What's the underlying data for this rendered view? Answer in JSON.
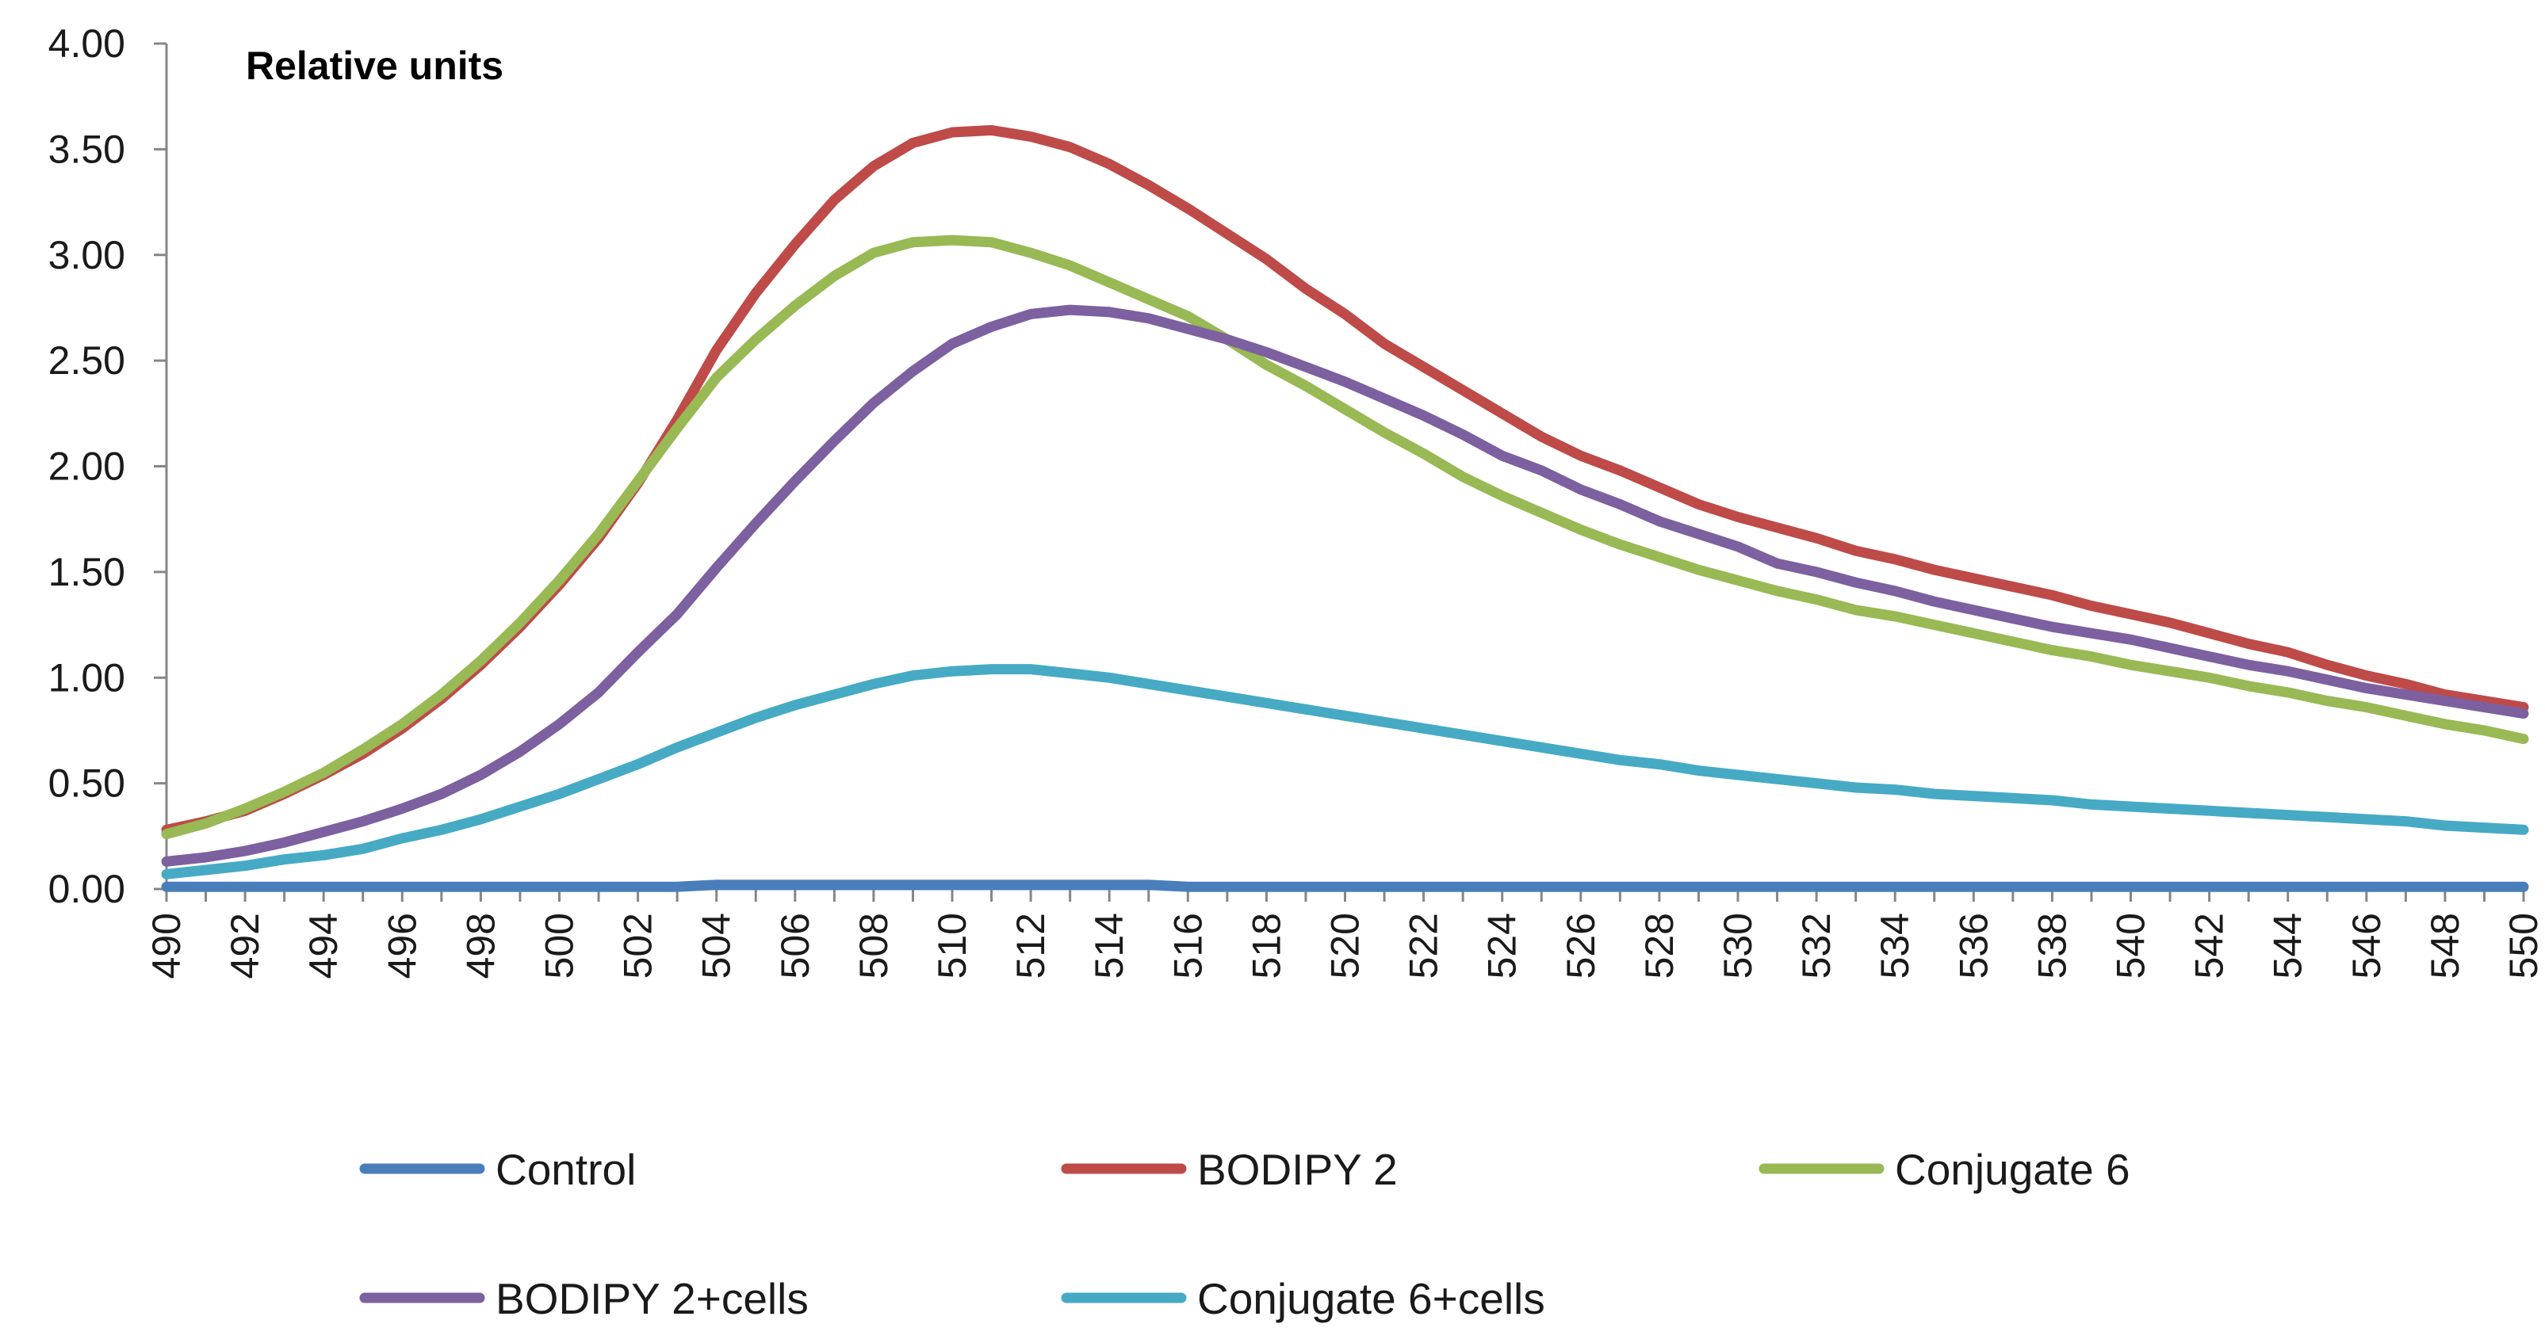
{
  "chart_data": {
    "type": "line",
    "title": "Relative units",
    "xlabel": "",
    "ylabel": "",
    "x": [
      490,
      491,
      492,
      493,
      494,
      495,
      496,
      497,
      498,
      499,
      500,
      501,
      502,
      503,
      504,
      505,
      506,
      507,
      508,
      509,
      510,
      511,
      512,
      513,
      514,
      515,
      516,
      517,
      518,
      519,
      520,
      521,
      522,
      523,
      524,
      525,
      526,
      527,
      528,
      529,
      530,
      531,
      532,
      533,
      534,
      535,
      536,
      537,
      538,
      539,
      540,
      541,
      542,
      543,
      544,
      545,
      546,
      547,
      548,
      549,
      550
    ],
    "xticks": [
      "490",
      "492",
      "494",
      "496",
      "498",
      "500",
      "502",
      "504",
      "506",
      "508",
      "510",
      "512",
      "514",
      "516",
      "518",
      "520",
      "522",
      "524",
      "526",
      "528",
      "530",
      "532",
      "534",
      "536",
      "538",
      "540",
      "542",
      "544",
      "546",
      "548",
      "550"
    ],
    "yticks": [
      "0.00",
      "0.50",
      "1.00",
      "1.50",
      "2.00",
      "2.50",
      "3.00",
      "3.50",
      "4.00"
    ],
    "ylim": [
      0,
      4
    ],
    "xlim": [
      490,
      550
    ],
    "grid": false,
    "legend_position": "bottom",
    "series": [
      {
        "name": "Control",
        "color": "#4a7ebb",
        "values": [
          0.01,
          0.01,
          0.01,
          0.01,
          0.01,
          0.01,
          0.01,
          0.01,
          0.01,
          0.01,
          0.01,
          0.01,
          0.01,
          0.01,
          0.02,
          0.02,
          0.02,
          0.02,
          0.02,
          0.02,
          0.02,
          0.02,
          0.02,
          0.02,
          0.02,
          0.02,
          0.01,
          0.01,
          0.01,
          0.01,
          0.01,
          0.01,
          0.01,
          0.01,
          0.01,
          0.01,
          0.01,
          0.01,
          0.01,
          0.01,
          0.01,
          0.01,
          0.01,
          0.01,
          0.01,
          0.01,
          0.01,
          0.01,
          0.01,
          0.01,
          0.01,
          0.01,
          0.01,
          0.01,
          0.01,
          0.01,
          0.01,
          0.01,
          0.01,
          0.01,
          0.01
        ]
      },
      {
        "name": "BODIPY 2",
        "color": "#be4b48",
        "values": [
          0.28,
          0.32,
          0.37,
          0.45,
          0.54,
          0.64,
          0.76,
          0.9,
          1.06,
          1.24,
          1.44,
          1.66,
          1.92,
          2.22,
          2.55,
          2.82,
          3.05,
          3.26,
          3.42,
          3.53,
          3.58,
          3.59,
          3.56,
          3.51,
          3.43,
          3.33,
          3.22,
          3.1,
          2.98,
          2.84,
          2.72,
          2.58,
          2.47,
          2.36,
          2.25,
          2.14,
          2.05,
          1.98,
          1.9,
          1.82,
          1.76,
          1.71,
          1.66,
          1.6,
          1.56,
          1.51,
          1.47,
          1.43,
          1.39,
          1.34,
          1.3,
          1.26,
          1.21,
          1.16,
          1.12,
          1.06,
          1.01,
          0.97,
          0.92,
          0.89,
          0.86
        ]
      },
      {
        "name": "Conjugate 6",
        "color": "#98b954",
        "values": [
          0.26,
          0.31,
          0.38,
          0.46,
          0.55,
          0.66,
          0.78,
          0.92,
          1.08,
          1.26,
          1.46,
          1.68,
          1.93,
          2.18,
          2.42,
          2.6,
          2.76,
          2.9,
          3.01,
          3.06,
          3.07,
          3.06,
          3.01,
          2.95,
          2.87,
          2.79,
          2.71,
          2.6,
          2.48,
          2.38,
          2.27,
          2.16,
          2.06,
          1.95,
          1.86,
          1.78,
          1.7,
          1.63,
          1.57,
          1.51,
          1.46,
          1.41,
          1.37,
          1.32,
          1.29,
          1.25,
          1.21,
          1.17,
          1.13,
          1.1,
          1.06,
          1.03,
          1.0,
          0.96,
          0.93,
          0.89,
          0.86,
          0.82,
          0.78,
          0.75,
          0.71
        ]
      },
      {
        "name": "BODIPY 2+cells",
        "color": "#7d60a0",
        "values": [
          0.13,
          0.15,
          0.18,
          0.22,
          0.27,
          0.32,
          0.38,
          0.45,
          0.54,
          0.65,
          0.78,
          0.93,
          1.12,
          1.3,
          1.52,
          1.73,
          1.93,
          2.12,
          2.3,
          2.45,
          2.58,
          2.66,
          2.72,
          2.74,
          2.73,
          2.7,
          2.65,
          2.6,
          2.54,
          2.47,
          2.4,
          2.32,
          2.24,
          2.15,
          2.05,
          1.98,
          1.89,
          1.82,
          1.74,
          1.68,
          1.62,
          1.54,
          1.5,
          1.45,
          1.41,
          1.36,
          1.32,
          1.28,
          1.24,
          1.21,
          1.18,
          1.14,
          1.1,
          1.06,
          1.03,
          0.99,
          0.95,
          0.92,
          0.89,
          0.86,
          0.83
        ]
      },
      {
        "name": "Conjugate 6+cells",
        "color": "#46aac5",
        "values": [
          0.07,
          0.09,
          0.11,
          0.14,
          0.16,
          0.19,
          0.24,
          0.28,
          0.33,
          0.39,
          0.45,
          0.52,
          0.59,
          0.67,
          0.74,
          0.81,
          0.87,
          0.92,
          0.97,
          1.01,
          1.03,
          1.04,
          1.04,
          1.02,
          1.0,
          0.97,
          0.94,
          0.91,
          0.88,
          0.85,
          0.82,
          0.79,
          0.76,
          0.73,
          0.7,
          0.67,
          0.64,
          0.61,
          0.59,
          0.56,
          0.54,
          0.52,
          0.5,
          0.48,
          0.47,
          0.45,
          0.44,
          0.43,
          0.42,
          0.4,
          0.39,
          0.38,
          0.37,
          0.36,
          0.35,
          0.34,
          0.33,
          0.32,
          0.3,
          0.29,
          0.28
        ]
      }
    ]
  }
}
